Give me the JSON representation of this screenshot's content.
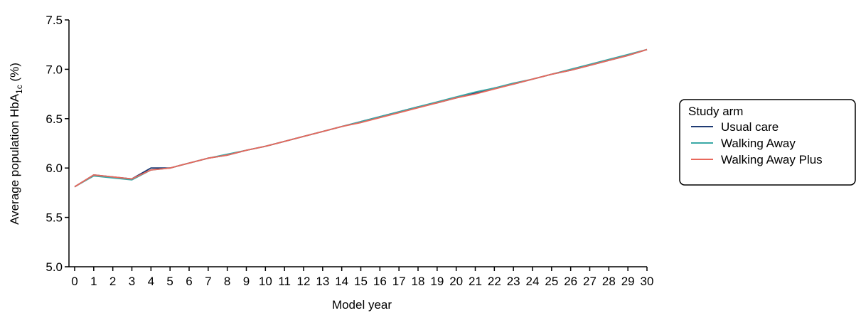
{
  "chart_data": {
    "type": "line",
    "xlabel": "Model year",
    "ylabel": {
      "prefix": "Average population HbA",
      "subscript": "1c",
      "suffix": " (%)"
    },
    "xlim": [
      0,
      30
    ],
    "ylim": [
      5.0,
      7.5
    ],
    "xticks": [
      0,
      1,
      2,
      3,
      4,
      5,
      6,
      7,
      8,
      9,
      10,
      11,
      12,
      13,
      14,
      15,
      16,
      17,
      18,
      19,
      20,
      21,
      22,
      23,
      24,
      25,
      26,
      27,
      28,
      29,
      30
    ],
    "yticks": [
      "5.0",
      "5.5",
      "6.0",
      "6.5",
      "7.0",
      "7.5"
    ],
    "grid": false,
    "legend": {
      "title": "Study arm",
      "placement": "right"
    },
    "x": [
      0,
      1,
      3,
      4,
      5,
      6,
      7,
      8,
      9,
      10,
      11,
      12,
      13,
      14,
      15,
      16,
      17,
      18,
      19,
      20,
      21,
      22,
      23,
      24,
      25,
      26,
      27,
      28,
      29,
      30
    ],
    "series": [
      {
        "name": "Usual care",
        "color": "#1f3b73",
        "values": [
          5.81,
          5.93,
          5.89,
          6.0,
          6.0,
          6.05,
          6.1,
          6.13,
          6.18,
          6.22,
          6.27,
          6.32,
          6.37,
          6.42,
          6.47,
          6.52,
          6.57,
          6.62,
          6.66,
          6.71,
          6.76,
          6.81,
          6.85,
          6.9,
          6.95,
          6.99,
          7.04,
          7.09,
          7.14,
          7.2
        ]
      },
      {
        "name": "Walking Away",
        "color": "#3aa8a6",
        "values": [
          5.81,
          5.92,
          5.88,
          5.98,
          6.0,
          6.05,
          6.1,
          6.14,
          6.18,
          6.22,
          6.27,
          6.32,
          6.37,
          6.42,
          6.47,
          6.52,
          6.57,
          6.62,
          6.67,
          6.72,
          6.77,
          6.81,
          6.86,
          6.9,
          6.95,
          7.0,
          7.05,
          7.1,
          7.15,
          7.2
        ]
      },
      {
        "name": "Walking Away Plus",
        "color": "#e8685c",
        "values": [
          5.81,
          5.93,
          5.89,
          5.98,
          6.0,
          6.05,
          6.1,
          6.13,
          6.18,
          6.22,
          6.27,
          6.32,
          6.37,
          6.42,
          6.46,
          6.51,
          6.56,
          6.61,
          6.66,
          6.71,
          6.75,
          6.8,
          6.85,
          6.9,
          6.95,
          6.99,
          7.04,
          7.09,
          7.14,
          7.2
        ]
      }
    ]
  }
}
